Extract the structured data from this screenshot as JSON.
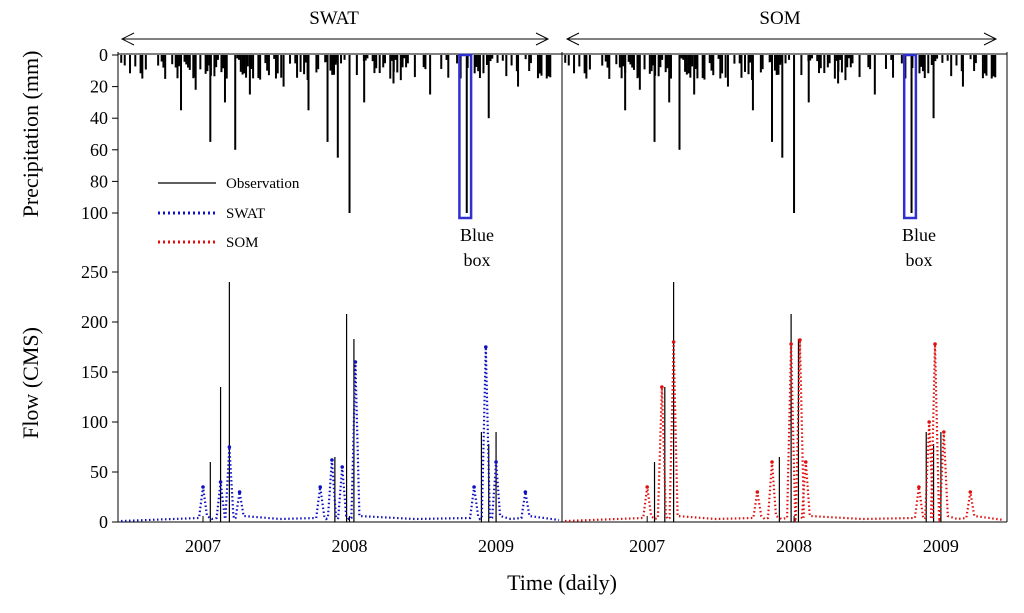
{
  "chart_data": {
    "type": "bar+line",
    "title": "",
    "panels": [
      "SWAT",
      "SOM"
    ],
    "xlabel": "Time (daily)",
    "x_ticks": [
      "2007",
      "2008",
      "2009"
    ],
    "precip_ylabel": "Precipitation (mm)",
    "precip_yticks": [
      "0",
      "20",
      "40",
      "60",
      "80",
      "100"
    ],
    "precip_ylim": [
      100,
      0
    ],
    "flow_ylabel": "Flow (CMS)",
    "flow_yticks": [
      "0",
      "50",
      "100",
      "150",
      "200",
      "250"
    ],
    "flow_ylim": [
      0,
      280
    ],
    "legend": [
      {
        "name": "Observation",
        "style": "solid",
        "color": "#000000"
      },
      {
        "name": "SWAT",
        "style": "dotted",
        "color": "#1010c0"
      },
      {
        "name": "SOM",
        "style": "dotted",
        "color": "#e01010"
      }
    ],
    "annotation_line1": "Blue",
    "annotation_line2": "box",
    "annotation_period_years": [
      2008.75,
      2008.83
    ],
    "precip_peaks_mm": [
      [
        2006.85,
        35
      ],
      [
        2006.95,
        22
      ],
      [
        2007.05,
        55
      ],
      [
        2007.15,
        30
      ],
      [
        2007.22,
        60
      ],
      [
        2007.32,
        25
      ],
      [
        2007.55,
        20
      ],
      [
        2007.72,
        35
      ],
      [
        2007.85,
        55
      ],
      [
        2007.92,
        65
      ],
      [
        2008.0,
        100
      ],
      [
        2008.1,
        30
      ],
      [
        2008.3,
        18
      ],
      [
        2008.55,
        25
      ],
      [
        2008.8,
        100
      ],
      [
        2008.95,
        40
      ],
      [
        2009.15,
        20
      ]
    ],
    "observed_flow_peaks_cms": [
      [
        2007.05,
        60
      ],
      [
        2007.12,
        135
      ],
      [
        2007.18,
        240
      ],
      [
        2007.9,
        65
      ],
      [
        2007.98,
        208
      ],
      [
        2008.03,
        183
      ],
      [
        2008.9,
        90
      ],
      [
        2008.95,
        78
      ],
      [
        2009.0,
        90
      ]
    ],
    "swat_flow_peaks_cms": [
      [
        2007.0,
        35
      ],
      [
        2007.12,
        40
      ],
      [
        2007.18,
        75
      ],
      [
        2007.25,
        30
      ],
      [
        2007.8,
        35
      ],
      [
        2007.88,
        62
      ],
      [
        2007.95,
        55
      ],
      [
        2008.04,
        160
      ],
      [
        2008.85,
        35
      ],
      [
        2008.93,
        175
      ],
      [
        2009.0,
        60
      ],
      [
        2009.2,
        30
      ]
    ],
    "som_flow_peaks_cms": [
      [
        2007.0,
        35
      ],
      [
        2007.1,
        135
      ],
      [
        2007.18,
        180
      ],
      [
        2007.75,
        30
      ],
      [
        2007.85,
        60
      ],
      [
        2007.98,
        178
      ],
      [
        2008.04,
        182
      ],
      [
        2008.08,
        60
      ],
      [
        2008.85,
        35
      ],
      [
        2008.92,
        100
      ],
      [
        2008.96,
        178
      ],
      [
        2009.02,
        90
      ],
      [
        2009.2,
        30
      ]
    ]
  }
}
